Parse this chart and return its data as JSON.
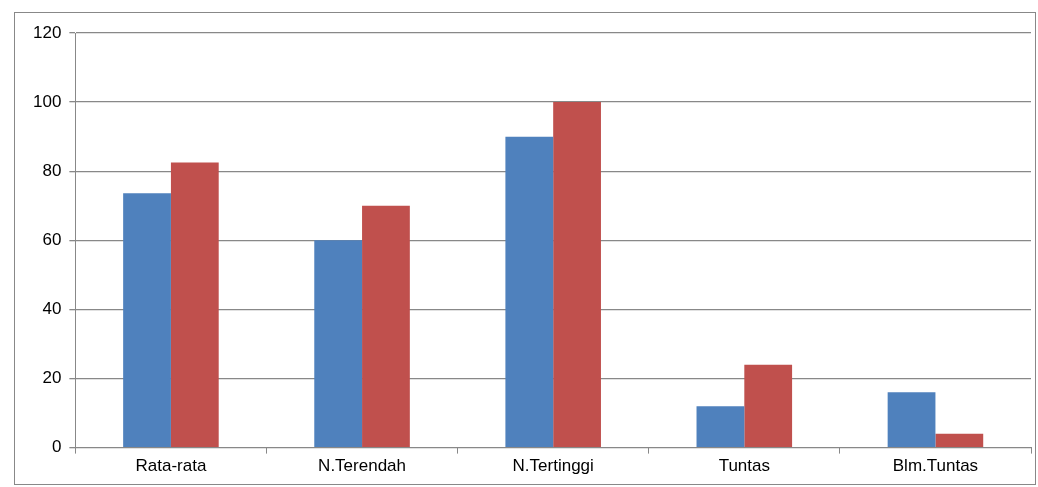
{
  "chart_data": {
    "type": "bar",
    "categories": [
      "Rata-rata",
      "N.Terendah",
      "N.Tertinggi",
      "Tuntas",
      "Blm.Tuntas"
    ],
    "series": [
      {
        "color": "#4f81bd",
        "values": [
          73.6,
          60,
          90,
          12,
          16
        ]
      },
      {
        "color": "#c0504d",
        "values": [
          82.5,
          70,
          100,
          24,
          4
        ]
      }
    ],
    "ylim": [
      0,
      120
    ],
    "yticks": [
      0,
      20,
      40,
      60,
      80,
      100,
      120
    ],
    "grid": "y",
    "legend": false
  }
}
